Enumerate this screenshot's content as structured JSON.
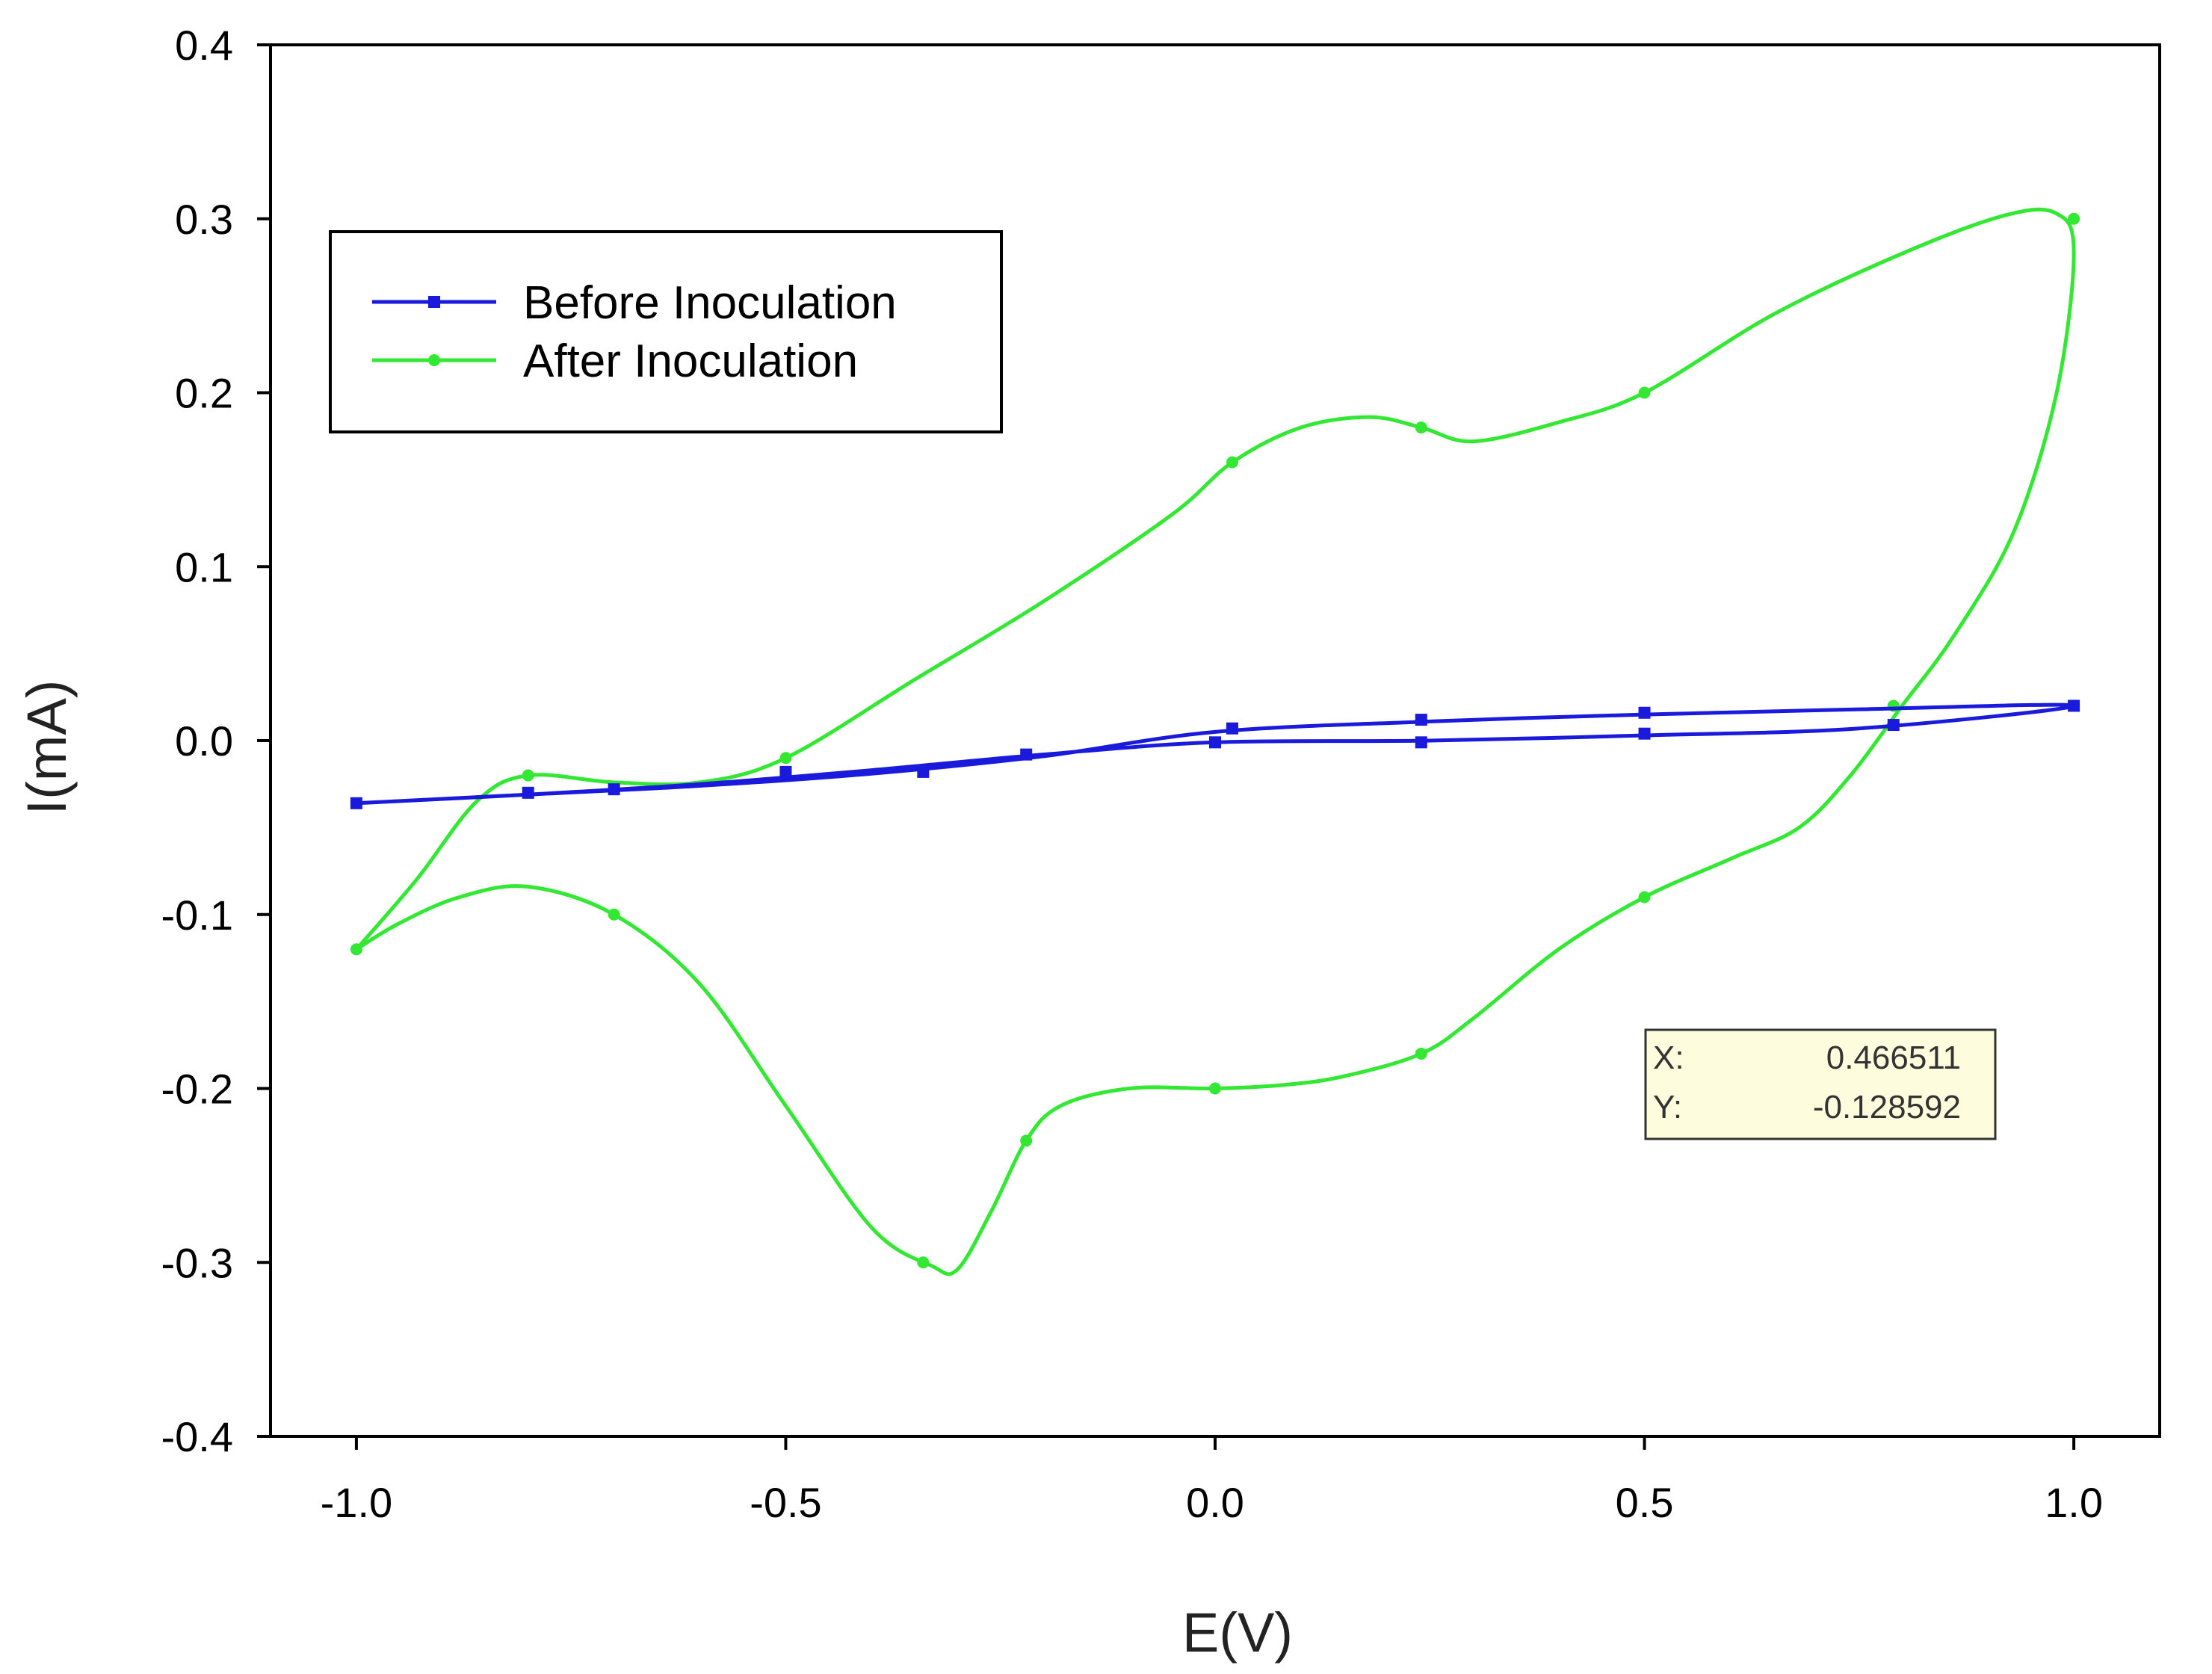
{
  "chart_data": {
    "type": "line",
    "title": "",
    "xlabel": "E(V)",
    "ylabel": "I(mA)",
    "xlim": [
      -1.1,
      1.1
    ],
    "ylim": [
      -0.4,
      0.4
    ],
    "x_ticks": [
      -1.0,
      -0.5,
      0.0,
      0.5,
      1.0
    ],
    "x_tick_labels": [
      "-1.0",
      "-0.5",
      "0.0",
      "0.5",
      "1.0"
    ],
    "y_ticks": [
      -0.4,
      -0.3,
      -0.2,
      -0.1,
      0.0,
      0.1,
      0.2,
      0.3,
      0.4
    ],
    "y_tick_labels": [
      "-0.4",
      "-0.3",
      "-0.2",
      "-0.1",
      "0.0",
      "0.1",
      "0.2",
      "0.3",
      "0.4"
    ],
    "grid": false,
    "legend_position": "top-left",
    "series": [
      {
        "name": "Before Inoculation",
        "color": "#1a1adc",
        "marker": "square",
        "curve": [
          [
            -1.0,
            -0.036
          ],
          [
            -0.8,
            -0.031
          ],
          [
            -0.6,
            -0.026
          ],
          [
            -0.4,
            -0.019
          ],
          [
            -0.2,
            -0.009
          ],
          [
            0.0,
            0.005
          ],
          [
            0.25,
            0.011
          ],
          [
            0.5,
            0.015
          ],
          [
            0.75,
            0.018
          ],
          [
            1.0,
            0.02
          ],
          [
            0.75,
            0.007
          ],
          [
            0.5,
            0.003
          ],
          [
            0.25,
            0.0
          ],
          [
            0.0,
            -0.001
          ],
          [
            -0.2,
            -0.008
          ],
          [
            -0.4,
            -0.017
          ],
          [
            -0.6,
            -0.025
          ],
          [
            -0.8,
            -0.031
          ],
          [
            -1.0,
            -0.036
          ]
        ],
        "markers": [
          [
            -1.0,
            -0.036
          ],
          [
            -0.8,
            -0.03
          ],
          [
            -0.7,
            -0.028
          ],
          [
            -0.5,
            -0.018
          ],
          [
            -0.34,
            -0.018
          ],
          [
            -0.22,
            -0.008
          ],
          [
            0.0,
            -0.001
          ],
          [
            0.02,
            0.007
          ],
          [
            0.24,
            0.012
          ],
          [
            0.24,
            -0.001
          ],
          [
            0.5,
            0.016
          ],
          [
            0.5,
            0.004
          ],
          [
            0.79,
            0.009
          ],
          [
            1.0,
            0.02
          ]
        ]
      },
      {
        "name": "After Inoculation",
        "color": "#33e833",
        "marker": "circle",
        "curve": [
          [
            -1.0,
            -0.12
          ],
          [
            -0.93,
            -0.08
          ],
          [
            -0.86,
            -0.035
          ],
          [
            -0.8,
            -0.02
          ],
          [
            -0.7,
            -0.024
          ],
          [
            -0.6,
            -0.024
          ],
          [
            -0.5,
            -0.01
          ],
          [
            -0.35,
            0.035
          ],
          [
            -0.2,
            0.08
          ],
          [
            -0.05,
            0.13
          ],
          [
            0.02,
            0.16
          ],
          [
            0.1,
            0.18
          ],
          [
            0.18,
            0.186
          ],
          [
            0.24,
            0.18
          ],
          [
            0.3,
            0.172
          ],
          [
            0.4,
            0.183
          ],
          [
            0.5,
            0.2
          ],
          [
            0.65,
            0.245
          ],
          [
            0.8,
            0.28
          ],
          [
            0.92,
            0.302
          ],
          [
            0.98,
            0.303
          ],
          [
            1.0,
            0.28
          ],
          [
            0.98,
            0.2
          ],
          [
            0.93,
            0.12
          ],
          [
            0.86,
            0.06
          ],
          [
            0.8,
            0.02
          ],
          [
            0.74,
            -0.02
          ],
          [
            0.68,
            -0.05
          ],
          [
            0.6,
            -0.068
          ],
          [
            0.5,
            -0.09
          ],
          [
            0.4,
            -0.12
          ],
          [
            0.3,
            -0.16
          ],
          [
            0.24,
            -0.18
          ],
          [
            0.15,
            -0.193
          ],
          [
            0.08,
            -0.198
          ],
          [
            0.0,
            -0.2
          ],
          [
            -0.1,
            -0.2
          ],
          [
            -0.18,
            -0.21
          ],
          [
            -0.22,
            -0.23
          ],
          [
            -0.26,
            -0.27
          ],
          [
            -0.3,
            -0.304
          ],
          [
            -0.33,
            -0.302
          ],
          [
            -0.4,
            -0.28
          ],
          [
            -0.5,
            -0.21
          ],
          [
            -0.6,
            -0.14
          ],
          [
            -0.7,
            -0.1
          ],
          [
            -0.8,
            -0.084
          ],
          [
            -0.88,
            -0.09
          ],
          [
            -0.95,
            -0.105
          ],
          [
            -1.0,
            -0.12
          ]
        ],
        "markers": [
          [
            -1.0,
            -0.12
          ],
          [
            -0.8,
            -0.02
          ],
          [
            -0.7,
            -0.1
          ],
          [
            -0.5,
            -0.01
          ],
          [
            -0.34,
            -0.3
          ],
          [
            -0.22,
            -0.23
          ],
          [
            0.0,
            -0.2
          ],
          [
            0.02,
            0.16
          ],
          [
            0.24,
            0.18
          ],
          [
            0.24,
            -0.18
          ],
          [
            0.5,
            0.2
          ],
          [
            0.5,
            -0.09
          ],
          [
            0.79,
            0.02
          ],
          [
            1.0,
            0.3
          ]
        ]
      }
    ],
    "cursor_readout": {
      "x_label": "X:",
      "x_value": "0.466511",
      "y_label": "Y:",
      "y_value": "-0.128592"
    }
  }
}
